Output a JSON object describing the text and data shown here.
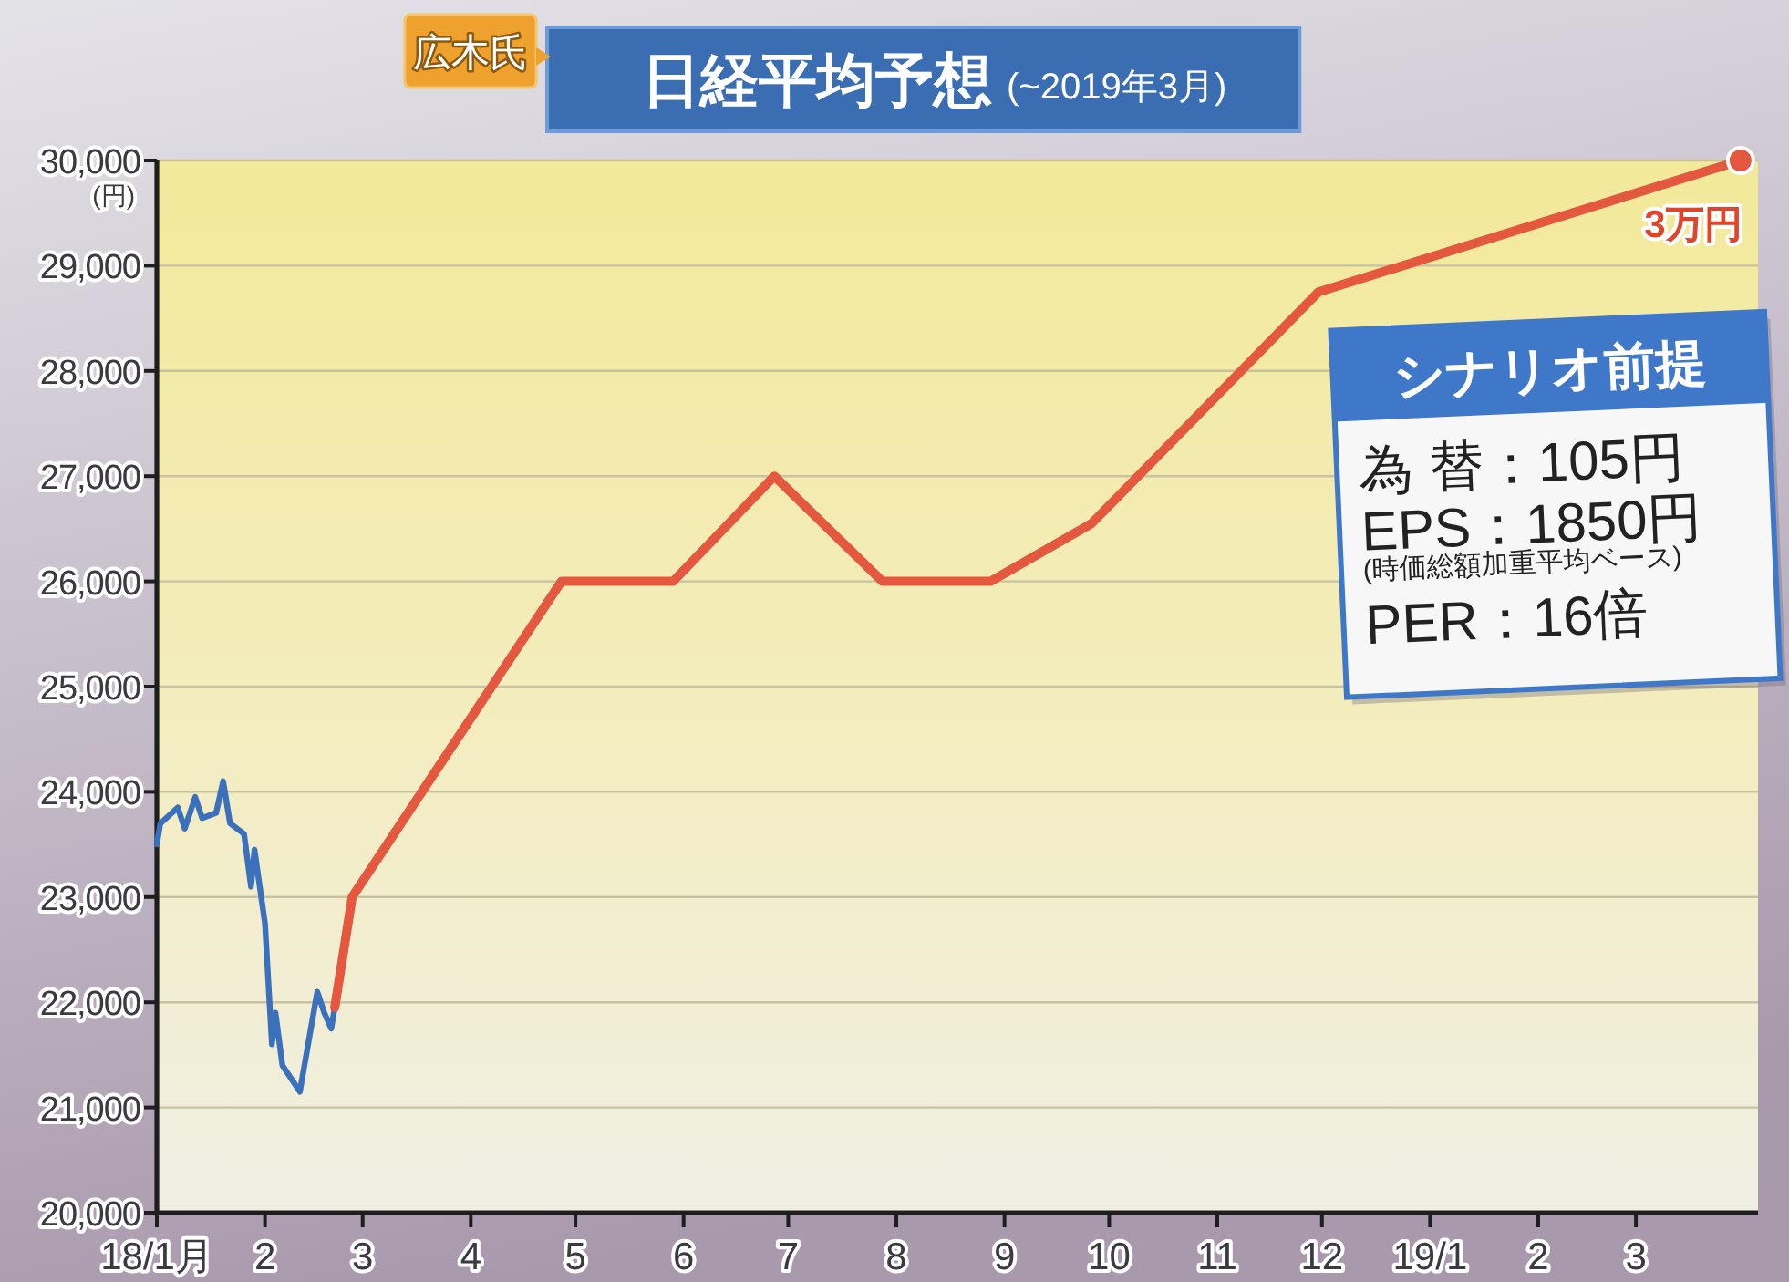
{
  "chart_data": {
    "type": "line",
    "title": "日経平均予想",
    "subtitle": "(~2019年3月)",
    "ylabel": "(円)",
    "annotations": [
      "広木氏",
      "シナリオ前提",
      "為 替：105円",
      "EPS：1850円",
      "(時価総額加重平均ベース)",
      "PER：16倍",
      {
        "text": "3万円",
        "x": "2019-03-31",
        "y": 30000
      }
    ],
    "xlim": [
      "2018-01-01",
      "2019-04-05"
    ],
    "xticks": [
      {
        "value": "2018-01-01",
        "label": "18/1月"
      },
      {
        "value": "2018-02-01",
        "label": "2"
      },
      {
        "value": "2018-03-01",
        "label": "3"
      },
      {
        "value": "2018-04-01",
        "label": "4"
      },
      {
        "value": "2018-05-01",
        "label": "5"
      },
      {
        "value": "2018-06-01",
        "label": "6"
      },
      {
        "value": "2018-07-01",
        "label": "7"
      },
      {
        "value": "2018-08-01",
        "label": "8"
      },
      {
        "value": "2018-09-01",
        "label": "9"
      },
      {
        "value": "2018-10-01",
        "label": "10"
      },
      {
        "value": "2018-11-01",
        "label": "11"
      },
      {
        "value": "2018-12-01",
        "label": "12"
      },
      {
        "value": "2019-01-01",
        "label": "19/1"
      },
      {
        "value": "2019-02-01",
        "label": "2"
      },
      {
        "value": "2019-03-01",
        "label": "3"
      }
    ],
    "ylim": [
      20000,
      30000
    ],
    "yticks": [
      {
        "value": 20000,
        "label": "20,000"
      },
      {
        "value": 21000,
        "label": "21,000"
      },
      {
        "value": 22000,
        "label": "22,000"
      },
      {
        "value": 23000,
        "label": "23,000"
      },
      {
        "value": 24000,
        "label": "24,000"
      },
      {
        "value": 25000,
        "label": "25,000"
      },
      {
        "value": 26000,
        "label": "26,000"
      },
      {
        "value": 27000,
        "label": "27,000"
      },
      {
        "value": 28000,
        "label": "28,000"
      },
      {
        "value": 29000,
        "label": "29,000"
      },
      {
        "value": 30000,
        "label": "30,000"
      }
    ],
    "grid": "y",
    "line_style": "solid",
    "series": [
      {
        "color": "#3b70bd",
        "x": [
          "2018-01-01",
          "2018-01-02",
          "2018-01-07",
          "2018-01-09",
          "2018-01-12",
          "2018-01-14",
          "2018-01-18",
          "2018-01-20",
          "2018-01-22",
          "2018-01-26",
          "2018-01-28",
          "2018-01-29",
          "2018-02-01",
          "2018-02-03",
          "2018-02-04",
          "2018-02-06",
          "2018-02-11",
          "2018-02-16",
          "2018-02-18",
          "2018-02-20",
          "2018-02-21"
        ],
        "values": [
          23500,
          23700,
          23850,
          23650,
          23950,
          23750,
          23800,
          24100,
          23700,
          23600,
          23100,
          23450,
          22750,
          21600,
          21900,
          21400,
          21150,
          22100,
          21900,
          21750,
          21950
        ]
      },
      {
        "color": "#e4583f",
        "x": [
          "2018-02-21",
          "2018-02-26",
          "2018-04-27",
          "2018-05-29",
          "2018-06-27",
          "2018-07-28",
          "2018-08-28",
          "2018-09-26",
          "2018-11-30",
          "2019-03-31"
        ],
        "values": [
          21950,
          23000,
          26000,
          26000,
          27000,
          26000,
          26000,
          26550,
          28750,
          30000
        ]
      },
      {
        "type": "scatter",
        "marker": "circle",
        "color": "#e4583f",
        "x": [
          "2019-03-31"
        ],
        "values": [
          30000
        ]
      }
    ]
  }
}
